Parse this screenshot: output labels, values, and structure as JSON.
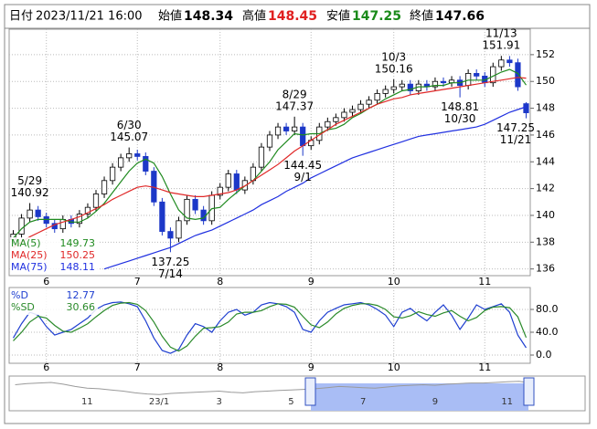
{
  "header": {
    "date_label": "日付",
    "date": "2023/11/21 16:00",
    "open_label": "始値",
    "high_label": "高値",
    "low_label": "安値",
    "close_label": "終値",
    "high_color": "#e02020",
    "low_color": "#1a8a1a"
  },
  "chart_data": [
    {
      "type": "candlestick",
      "categories": [
        null,
        null,
        null,
        null,
        "6",
        null,
        null,
        null,
        null,
        null,
        null,
        null,
        null,
        null,
        null,
        "7",
        null,
        null,
        null,
        null,
        null,
        null,
        null,
        null,
        null,
        "8",
        null,
        null,
        null,
        null,
        null,
        null,
        null,
        null,
        null,
        null,
        "9",
        null,
        null,
        null,
        null,
        null,
        null,
        null,
        null,
        null,
        "10",
        null,
        null,
        null,
        null,
        null,
        null,
        null,
        null,
        null,
        null,
        "11",
        null,
        null,
        null,
        null,
        null
      ],
      "open": [
        138.2,
        138.6,
        139.8,
        140.4,
        139.9,
        139.4,
        139.0,
        139.7,
        139.4,
        140.1,
        140.6,
        141.6,
        142.6,
        143.6,
        144.3,
        144.6,
        144.4,
        143.3,
        141.0,
        138.8,
        138.3,
        139.6,
        141.2,
        140.4,
        139.6,
        141.5,
        142.1,
        143.1,
        141.9,
        142.6,
        143.6,
        145.1,
        146.0,
        146.6,
        146.3,
        146.6,
        145.2,
        145.6,
        146.6,
        147.0,
        147.3,
        147.7,
        147.9,
        148.3,
        148.6,
        149.1,
        149.4,
        149.6,
        149.8,
        149.3,
        149.8,
        149.6,
        150.0,
        149.9,
        150.1,
        149.7,
        150.6,
        150.4,
        149.9,
        151.1,
        151.6,
        151.4,
        148.34
      ],
      "high": [
        138.9,
        140.1,
        140.92,
        140.7,
        140.2,
        139.7,
        140.0,
        140.0,
        140.4,
        140.9,
        141.9,
        142.9,
        143.9,
        144.6,
        145.07,
        144.9,
        144.7,
        143.6,
        141.3,
        139.1,
        139.9,
        141.5,
        141.5,
        140.7,
        141.8,
        142.4,
        143.4,
        143.4,
        142.9,
        143.9,
        145.4,
        146.3,
        146.9,
        146.9,
        147.37,
        146.9,
        145.9,
        146.9,
        147.3,
        147.6,
        148.0,
        148.2,
        148.6,
        148.9,
        149.4,
        149.7,
        150.16,
        150.1,
        150.1,
        150.1,
        150.1,
        150.3,
        150.3,
        150.4,
        150.4,
        150.9,
        150.9,
        150.7,
        151.4,
        151.91,
        151.9,
        151.7,
        148.45
      ],
      "low": [
        137.9,
        138.3,
        139.5,
        139.6,
        139.1,
        138.7,
        138.7,
        139.1,
        139.1,
        139.8,
        140.3,
        141.3,
        142.3,
        143.3,
        144.0,
        144.1,
        143.0,
        140.7,
        138.5,
        137.25,
        138.0,
        139.3,
        140.1,
        139.3,
        139.3,
        141.2,
        141.8,
        141.6,
        141.6,
        142.3,
        143.3,
        144.8,
        145.7,
        146.0,
        146.0,
        144.45,
        144.9,
        145.3,
        146.3,
        146.7,
        147.0,
        147.4,
        147.6,
        148.0,
        148.3,
        148.8,
        149.1,
        149.3,
        149.0,
        149.0,
        149.3,
        149.3,
        149.6,
        149.6,
        148.81,
        149.4,
        150.1,
        149.6,
        149.6,
        150.8,
        151.1,
        149.3,
        147.25
      ],
      "close": [
        138.6,
        139.8,
        140.4,
        139.9,
        139.4,
        139.0,
        139.7,
        139.4,
        140.1,
        140.6,
        141.6,
        142.6,
        143.6,
        144.3,
        144.6,
        144.4,
        143.3,
        141.0,
        138.8,
        138.3,
        139.6,
        141.2,
        140.4,
        139.6,
        141.5,
        142.1,
        143.1,
        141.9,
        142.6,
        143.6,
        145.1,
        146.0,
        146.6,
        146.3,
        146.6,
        145.2,
        145.6,
        146.6,
        147.0,
        147.3,
        147.7,
        147.9,
        148.3,
        148.6,
        149.1,
        149.4,
        149.6,
        149.8,
        149.3,
        149.8,
        149.6,
        150.0,
        149.9,
        150.1,
        149.7,
        150.6,
        150.4,
        149.9,
        151.1,
        151.6,
        151.4,
        149.6,
        147.66
      ],
      "up_color": "#ffffff",
      "down_color": "#1c38c8",
      "series": [
        {
          "name": "MA(5)",
          "color": "#1f8a1f",
          "values": [
            138.3,
            139.0,
            139.5,
            139.7,
            139.7,
            139.7,
            139.7,
            139.5,
            139.5,
            139.8,
            140.3,
            140.9,
            141.7,
            142.5,
            143.3,
            143.9,
            144.2,
            143.9,
            142.9,
            141.6,
            140.4,
            139.8,
            139.7,
            139.8,
            140.5,
            140.6,
            141.2,
            141.7,
            142.2,
            142.6,
            143.3,
            144.0,
            144.9,
            145.5,
            146.1,
            146.0,
            146.1,
            146.1,
            146.4,
            146.5,
            146.8,
            147.3,
            147.6,
            148.0,
            148.3,
            148.7,
            149.0,
            149.3,
            149.4,
            149.6,
            149.6,
            149.7,
            149.7,
            149.9,
            149.9,
            150.1,
            150.1,
            150.1,
            150.4,
            150.7,
            150.9,
            150.6,
            149.73
          ]
        },
        {
          "name": "MA(25)",
          "color": "#e02828",
          "values": [
            137.6,
            138.0,
            138.4,
            138.7,
            139.0,
            139.3,
            139.5,
            139.7,
            139.9,
            140.2,
            140.5,
            140.8,
            141.2,
            141.5,
            141.8,
            142.1,
            142.2,
            142.1,
            141.9,
            141.7,
            141.6,
            141.5,
            141.4,
            141.4,
            141.5,
            141.6,
            141.7,
            141.9,
            142.2,
            142.6,
            143.0,
            143.4,
            143.8,
            144.3,
            144.8,
            145.2,
            145.6,
            146.0,
            146.4,
            146.8,
            147.1,
            147.4,
            147.7,
            148.0,
            148.3,
            148.5,
            148.7,
            148.8,
            149.0,
            149.1,
            149.2,
            149.3,
            149.4,
            149.5,
            149.6,
            149.7,
            149.8,
            149.9,
            150.0,
            150.1,
            150.2,
            150.3,
            150.25
          ]
        },
        {
          "name": "MA(75)",
          "color": "#2030e0",
          "values": [
            null,
            null,
            null,
            null,
            null,
            null,
            null,
            null,
            null,
            null,
            null,
            136.0,
            136.2,
            136.4,
            136.6,
            136.8,
            137.0,
            137.2,
            137.4,
            137.6,
            137.9,
            138.2,
            138.5,
            138.7,
            138.9,
            139.2,
            139.5,
            139.8,
            140.1,
            140.4,
            140.8,
            141.1,
            141.4,
            141.8,
            142.1,
            142.4,
            142.8,
            143.1,
            143.4,
            143.7,
            144.0,
            144.3,
            144.5,
            144.7,
            144.9,
            145.1,
            145.3,
            145.5,
            145.7,
            145.9,
            146.0,
            146.1,
            146.2,
            146.3,
            146.4,
            146.5,
            146.6,
            146.8,
            147.1,
            147.4,
            147.7,
            147.9,
            148.11
          ]
        }
      ],
      "ylim": [
        135.5,
        153.9
      ],
      "yticks": [
        136,
        138,
        140,
        142,
        144,
        146,
        148,
        150,
        152
      ],
      "grid": true,
      "legend": "lower left",
      "annotations": [
        {
          "label": "5/29",
          "value": 140.92
        },
        {
          "label": "6/30",
          "value": 145.07
        },
        {
          "label": "7/14",
          "value": 137.25
        },
        {
          "label": "8/29",
          "value": 147.37
        },
        {
          "label": "9/1",
          "value": 144.45
        },
        {
          "label": "10/3",
          "value": 150.16
        },
        {
          "label": "10/30",
          "value": 148.81
        },
        {
          "label": "11/13",
          "value": 151.91
        },
        {
          "label": "11/21",
          "value": 147.25
        }
      ]
    },
    {
      "type": "line",
      "categories": [
        null,
        null,
        null,
        null,
        "6",
        null,
        null,
        null,
        null,
        null,
        null,
        null,
        null,
        null,
        null,
        "7",
        null,
        null,
        null,
        null,
        null,
        null,
        null,
        null,
        null,
        "8",
        null,
        null,
        null,
        null,
        null,
        null,
        null,
        null,
        null,
        null,
        "9",
        null,
        null,
        null,
        null,
        null,
        null,
        null,
        null,
        null,
        "10",
        null,
        null,
        null,
        null,
        null,
        null,
        null,
        null,
        null,
        null,
        "11",
        null,
        null,
        null,
        null,
        null
      ],
      "series": [
        {
          "name": "%D",
          "color": "#1f3fd0",
          "values": [
            30,
            55,
            75,
            70,
            50,
            35,
            40,
            45,
            55,
            65,
            80,
            88,
            92,
            93,
            90,
            85,
            60,
            30,
            8,
            3,
            10,
            35,
            55,
            50,
            40,
            60,
            75,
            80,
            70,
            75,
            88,
            92,
            90,
            85,
            75,
            45,
            40,
            60,
            75,
            82,
            88,
            90,
            92,
            88,
            80,
            70,
            50,
            75,
            82,
            70,
            60,
            75,
            88,
            70,
            45,
            65,
            88,
            80,
            85,
            90,
            75,
            35,
            12.77
          ]
        },
        {
          "name": "%SD",
          "color": "#2a8a2a",
          "values": [
            25,
            40,
            58,
            68,
            65,
            52,
            42,
            40,
            47,
            55,
            67,
            78,
            87,
            91,
            92,
            89,
            78,
            58,
            33,
            14,
            7,
            16,
            33,
            47,
            48,
            50,
            58,
            72,
            75,
            75,
            78,
            85,
            90,
            89,
            84,
            68,
            53,
            48,
            58,
            72,
            82,
            87,
            90,
            90,
            87,
            80,
            67,
            65,
            69,
            76,
            71,
            68,
            74,
            78,
            68,
            60,
            66,
            78,
            84,
            85,
            83,
            67,
            30.66
          ]
        }
      ],
      "ylim": [
        -14.4,
        118.4
      ],
      "yticks": [
        {
          "value": 0,
          "label": "0.0"
        },
        {
          "value": 40,
          "label": "40.0"
        },
        {
          "value": 80,
          "label": "80.0"
        }
      ],
      "grid": true,
      "legend": "upper left"
    },
    {
      "type": "line",
      "categories": [
        null,
        null,
        null,
        null,
        null,
        null,
        "11",
        null,
        null,
        null,
        null,
        null,
        "23/1",
        null,
        null,
        null,
        null,
        "3",
        null,
        null,
        null,
        null,
        null,
        "5",
        null,
        null,
        null,
        null,
        null,
        "7",
        null,
        null,
        null,
        null,
        null,
        "9",
        null,
        null,
        null,
        null,
        null,
        "11",
        null,
        null,
        null,
        null,
        null,
        null
      ],
      "series": [
        {
          "color": "#9a9a9a",
          "values": [
            145,
            147,
            148,
            149,
            146,
            142,
            139,
            138,
            136,
            134,
            131,
            129,
            128,
            130,
            131,
            132,
            133,
            134,
            132,
            131,
            133,
            134,
            135,
            136,
            137,
            138,
            140,
            142,
            141,
            140,
            139,
            141,
            143,
            144,
            145,
            144,
            146,
            147,
            148,
            148,
            149,
            150,
            151,
            148,
            null,
            null,
            null,
            null
          ]
        }
      ],
      "ylim": [
        100,
        160
      ]
    }
  ]
}
